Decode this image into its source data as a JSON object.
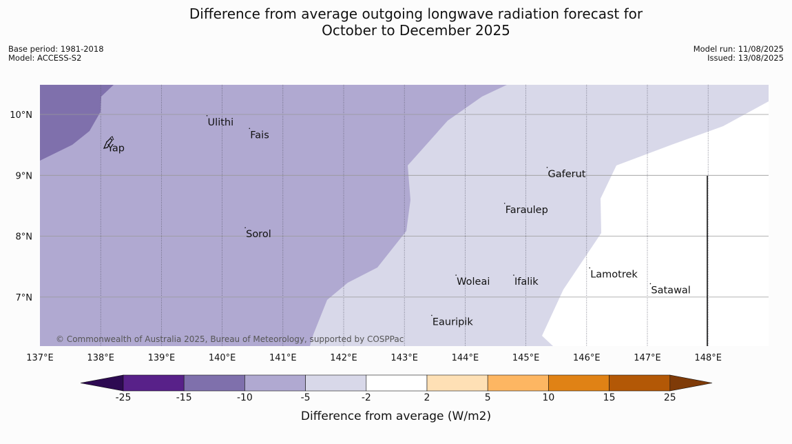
{
  "header": {
    "title_line1": "Difference from average outgoing longwave radiation forecast for",
    "title_line2": "October to December 2025",
    "base_period": "Base period: 1981-2018",
    "model": "Model: ACCESS-S2",
    "model_run": "Model run: 11/08/2025",
    "issued": "Issued: 13/08/2025"
  },
  "map": {
    "lon_ticks": [
      "137°E",
      "138°E",
      "139°E",
      "140°E",
      "141°E",
      "142°E",
      "143°E",
      "144°E",
      "145°E",
      "146°E",
      "147°E",
      "148°E"
    ],
    "lat_ticks": [
      "10°N",
      "9°N",
      "8°N",
      "7°N"
    ],
    "places": [
      {
        "name": "Ulithi",
        "lon": 139.75,
        "lat": 9.98
      },
      {
        "name": "Fais",
        "lon": 140.45,
        "lat": 9.77
      },
      {
        "name": "Yap",
        "lon": 138.1,
        "lat": 9.55
      },
      {
        "name": "Gaferut",
        "lon": 145.35,
        "lat": 9.13
      },
      {
        "name": "Faraulep",
        "lon": 144.65,
        "lat": 8.54
      },
      {
        "name": "Sorol",
        "lon": 140.38,
        "lat": 8.14
      },
      {
        "name": "Lamotrek",
        "lon": 146.05,
        "lat": 7.48
      },
      {
        "name": "Woleai",
        "lon": 143.85,
        "lat": 7.36
      },
      {
        "name": "Ifalik",
        "lon": 144.8,
        "lat": 7.36
      },
      {
        "name": "Satawal",
        "lon": 147.05,
        "lat": 7.22
      },
      {
        "name": "Eauripik",
        "lon": 143.45,
        "lat": 6.7
      }
    ],
    "copyright": "© Commonwealth of Australia 2025, Bureau of Meteorology, supported by COSPPac"
  },
  "colorbar": {
    "label": "Difference from average (W/m2)",
    "ticks": [
      "-25",
      "-15",
      "-10",
      "-5",
      "-2",
      "2",
      "5",
      "10",
      "15",
      "25"
    ],
    "colors": [
      "#2d0a52",
      "#582189",
      "#7f70ac",
      "#b0a9d1",
      "#d8d8e9",
      "#ffffff",
      "#fee0b5",
      "#fdb662",
      "#e08215",
      "#b35806",
      "#7f3b08"
    ]
  },
  "colors": {
    "contour_le_m15": "#7f70ac",
    "contour_m10_m5": "#b0a9d1",
    "contour_m5_m2": "#d8d8e9",
    "contour_neutral": "#ffffff"
  }
}
